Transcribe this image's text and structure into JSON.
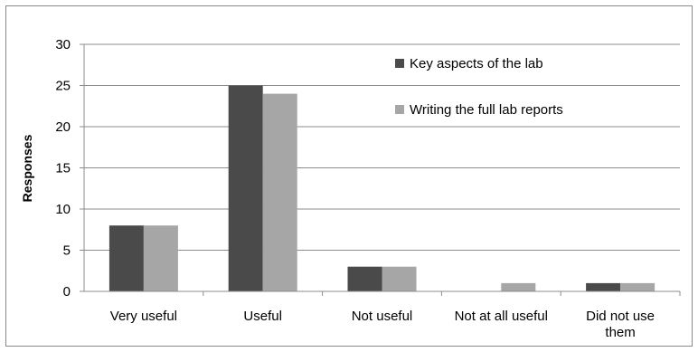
{
  "chart_data": {
    "type": "bar",
    "title": "",
    "xlabel": "",
    "ylabel": "Responses",
    "ylim": [
      0,
      30
    ],
    "yticks": [
      0,
      5,
      10,
      15,
      20,
      25,
      30
    ],
    "grid": true,
    "legend_position": "top-right",
    "categories": [
      [
        "Very useful"
      ],
      [
        "Useful"
      ],
      [
        "Not useful"
      ],
      [
        "Not at all useful"
      ],
      [
        "Did not use",
        "them"
      ]
    ],
    "series": [
      {
        "name": "Key aspects of the lab",
        "color": "#4a4a4a",
        "values": [
          8,
          25,
          3,
          0,
          1
        ]
      },
      {
        "name": "Writing the full lab reports",
        "color": "#a6a6a6",
        "values": [
          8,
          24,
          3,
          1,
          1
        ]
      }
    ]
  }
}
